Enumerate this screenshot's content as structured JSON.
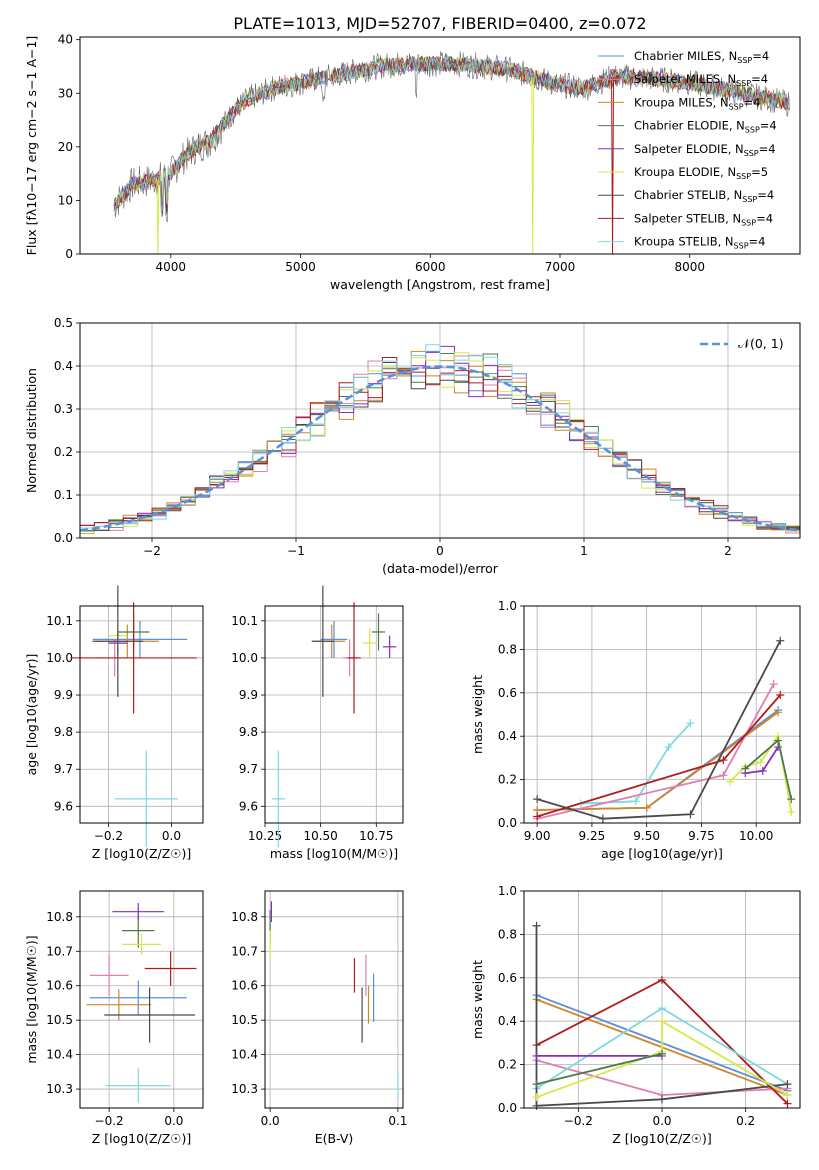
{
  "figure": {
    "title": "PLATE=1013, MJD=52707, FIBERID=0400, z=0.072"
  },
  "colors": {
    "Chabrier MILES": "#5b8fd6",
    "Salpeter MILES": "#e07fb1",
    "Kroupa MILES": "#d0862a",
    "Chabrier ELODIE": "#4a7a4a",
    "Salpeter ELODIE": "#8a2bc2",
    "Kroupa ELODIE": "#d6e84a",
    "Chabrier STELIB": "#4a4a4a",
    "Salpeter STELIB": "#b01c1c",
    "Kroupa STELIB": "#7fd8e0"
  },
  "chart_data": [
    {
      "id": "spectrum",
      "type": "line",
      "title": "PLATE=1013, MJD=52707, FIBERID=0400, z=0.072",
      "xlabel": "wavelength [Angstrom, rest frame]",
      "ylabel": "Flux [fλ10−17 erg cm−2 s−1 A−1]",
      "xlim": [
        3300,
        8850
      ],
      "ylim": [
        0,
        40.5
      ],
      "xticks": [
        "4000",
        "5000",
        "6000",
        "7000",
        "8000"
      ],
      "yticks": [
        "0",
        "10",
        "20",
        "30",
        "40"
      ],
      "legend_position": "upper right",
      "legend": [
        "Chabrier MILES, NSSP=4",
        "Salpeter MILES, NSSP=4",
        "Kroupa MILES, NSSP=4",
        "Chabrier ELODIE, NSSP=4",
        "Salpeter ELODIE, NSSP=4",
        "Kroupa ELODIE, NSSP=5",
        "Chabrier STELIB, NSSP=4",
        "Salpeter STELIB, NSSP=4",
        "Kroupa STELIB, NSSP=4"
      ],
      "continuum": [
        [
          3560,
          9
        ],
        [
          3700,
          13
        ],
        [
          3900,
          14
        ],
        [
          4000,
          15
        ],
        [
          4100,
          18
        ],
        [
          4200,
          20
        ],
        [
          4300,
          21
        ],
        [
          4400,
          24
        ],
        [
          4500,
          27
        ],
        [
          4600,
          29
        ],
        [
          4800,
          31
        ],
        [
          5000,
          32
        ],
        [
          5200,
          33
        ],
        [
          5400,
          34
        ],
        [
          5600,
          35
        ],
        [
          5800,
          35.5
        ],
        [
          6000,
          35.5
        ],
        [
          6200,
          35.5
        ],
        [
          6400,
          35
        ],
        [
          6600,
          34.5
        ],
        [
          6800,
          33
        ],
        [
          7000,
          31.5
        ],
        [
          7200,
          31
        ],
        [
          7400,
          33
        ],
        [
          7600,
          33
        ],
        [
          7800,
          32.5
        ],
        [
          8000,
          32
        ],
        [
          8200,
          31
        ],
        [
          8400,
          30
        ],
        [
          8600,
          29
        ],
        [
          8770,
          28
        ]
      ],
      "dips": [
        [
          3900,
          0
        ],
        [
          6790,
          0
        ],
        [
          7405,
          0
        ]
      ],
      "grid": false
    },
    {
      "id": "residuals",
      "type": "histogram",
      "xlabel": "(data-model)/error",
      "ylabel": "Normed distribution",
      "xlim": [
        -2.5,
        2.5
      ],
      "ylim": [
        0,
        0.5
      ],
      "xticks": [
        "−2",
        "−1",
        "0",
        "1",
        "2"
      ],
      "yticks": [
        "0.0",
        "0.1",
        "0.2",
        "0.3",
        "0.4",
        "0.5"
      ],
      "bin_width": 0.1,
      "legend_position": "upper right",
      "legend": [
        "𝒩(0, 1)"
      ],
      "reference_curve": "normal(0,1)",
      "reference_color": "#5b8fd6",
      "grid": true
    },
    {
      "id": "age_vs_z",
      "type": "errorbar",
      "xlabel": "Z [log10(Z/Z☉)]",
      "ylabel": "age  [log10(age/yr)]",
      "xlim": [
        -0.29,
        0.1
      ],
      "ylim": [
        9.555,
        10.14
      ],
      "xticks": [
        "−0.2",
        "0.0"
      ],
      "yticks": [
        "9.6",
        "9.7",
        "9.8",
        "9.9",
        "10.0",
        "10.1"
      ],
      "points": [
        {
          "series": "Chabrier MILES",
          "x": -0.1,
          "y": 10.05,
          "xerr": 0.15,
          "yerr": 0.05
        },
        {
          "series": "Salpeter MILES",
          "x": -0.18,
          "y": 10.0,
          "xerr": 0.06,
          "yerr": 0.05
        },
        {
          "series": "Kroupa MILES",
          "x": -0.14,
          "y": 10.045,
          "xerr": 0.1,
          "yerr": 0.045
        },
        {
          "series": "Chabrier ELODIE",
          "x": -0.12,
          "y": 10.07,
          "xerr": 0.05,
          "yerr": 0.05
        },
        {
          "series": "Salpeter ELODIE",
          "x": -0.17,
          "y": 10.04,
          "xerr": 0.03,
          "yerr": 0.03
        },
        {
          "series": "Kroupa ELODIE",
          "x": -0.17,
          "y": 10.06,
          "xerr": 0.03,
          "yerr": 0.03
        },
        {
          "series": "Chabrier STELIB",
          "x": -0.17,
          "y": 10.045,
          "xerr": 0.08,
          "yerr": 0.15
        },
        {
          "series": "Salpeter STELIB",
          "x": -0.12,
          "y": 10.0,
          "xerr": 0.2,
          "yerr": 0.15
        },
        {
          "series": "Kroupa STELIB",
          "x": -0.08,
          "y": 9.62,
          "xerr": 0.1,
          "yerr": 0.13
        }
      ],
      "grid": true
    },
    {
      "id": "age_vs_mass",
      "type": "errorbar",
      "xlabel": "mass [log10(M/M☉)]",
      "ylabel": "",
      "xlim": [
        10.25,
        10.87
      ],
      "ylim": [
        9.555,
        10.14
      ],
      "xticks": [
        "10.25",
        "10.50",
        "10.75"
      ],
      "yticks": [
        "9.6",
        "9.7",
        "9.8",
        "9.9",
        "10.0",
        "10.1"
      ],
      "points": [
        {
          "series": "Chabrier MILES",
          "x": 10.56,
          "y": 10.05,
          "xerr": 0.06,
          "yerr": 0.05
        },
        {
          "series": "Salpeter MILES",
          "x": 10.63,
          "y": 10.0,
          "xerr": 0.03,
          "yerr": 0.05
        },
        {
          "series": "Kroupa MILES",
          "x": 10.55,
          "y": 10.045,
          "xerr": 0.06,
          "yerr": 0.045
        },
        {
          "series": "Chabrier ELODIE",
          "x": 10.76,
          "y": 10.07,
          "xerr": 0.03,
          "yerr": 0.05
        },
        {
          "series": "Salpeter ELODIE",
          "x": 10.81,
          "y": 10.03,
          "xerr": 0.03,
          "yerr": 0.03
        },
        {
          "series": "Kroupa ELODIE",
          "x": 10.72,
          "y": 10.04,
          "xerr": 0.03,
          "yerr": 0.04
        },
        {
          "series": "Chabrier STELIB",
          "x": 10.51,
          "y": 10.045,
          "xerr": 0.05,
          "yerr": 0.15
        },
        {
          "series": "Salpeter STELIB",
          "x": 10.65,
          "y": 10.0,
          "xerr": 0.03,
          "yerr": 0.15
        },
        {
          "series": "Kroupa STELIB",
          "x": 10.31,
          "y": 9.62,
          "xerr": 0.03,
          "yerr": 0.13
        }
      ],
      "grid": true
    },
    {
      "id": "weight_vs_age",
      "type": "line",
      "xlabel": "age  [log10(age/yr)]",
      "ylabel": "mass weight",
      "xlim": [
        8.94,
        10.2
      ],
      "ylim": [
        0,
        1.0
      ],
      "xticks": [
        "9.00",
        "9.25",
        "9.50",
        "9.75",
        "10.00"
      ],
      "yticks": [
        "0.0",
        "0.2",
        "0.4",
        "0.6",
        "0.8",
        "1.0"
      ],
      "series": [
        {
          "series": "Kroupa STELIB",
          "x": [
            9.2,
            9.45,
            9.6,
            9.7
          ],
          "y": [
            0.09,
            0.1,
            0.35,
            0.46
          ]
        },
        {
          "series": "Chabrier MILES",
          "x": [
            9.0,
            9.5,
            10.1
          ],
          "y": [
            0.06,
            0.07,
            0.52
          ]
        },
        {
          "series": "Kroupa MILES",
          "x": [
            9.0,
            9.5,
            10.1
          ],
          "y": [
            0.06,
            0.07,
            0.51
          ]
        },
        {
          "series": "Salpeter MILES",
          "x": [
            9.0,
            9.85,
            10.08
          ],
          "y": [
            0.02,
            0.22,
            0.64
          ]
        },
        {
          "series": "Salpeter STELIB",
          "x": [
            9.0,
            9.85,
            10.11
          ],
          "y": [
            0.03,
            0.29,
            0.59
          ]
        },
        {
          "series": "Chabrier STELIB",
          "x": [
            9.0,
            9.3,
            9.7,
            10.11
          ],
          "y": [
            0.11,
            0.02,
            0.04,
            0.84
          ]
        },
        {
          "series": "Salpeter ELODIE",
          "x": [
            9.95,
            10.03,
            10.1
          ],
          "y": [
            0.23,
            0.24,
            0.35
          ]
        },
        {
          "series": "Kroupa ELODIE",
          "x": [
            9.88,
            9.95,
            10.02,
            10.1,
            10.16
          ],
          "y": [
            0.19,
            0.26,
            0.28,
            0.4,
            0.05
          ]
        },
        {
          "series": "Chabrier ELODIE",
          "x": [
            9.95,
            10.1,
            10.16
          ],
          "y": [
            0.25,
            0.38,
            0.11
          ]
        }
      ],
      "grid": true
    },
    {
      "id": "mass_vs_z",
      "type": "errorbar",
      "xlabel": "Z [log10(Z/Z☉)]",
      "ylabel": "mass [log10(M/M☉)]",
      "xlim": [
        -0.29,
        0.09
      ],
      "ylim": [
        10.245,
        10.875
      ],
      "xticks": [
        "−0.2",
        "0.0"
      ],
      "yticks": [
        "10.3",
        "10.4",
        "10.5",
        "10.6",
        "10.7",
        "10.8"
      ],
      "points": [
        {
          "series": "Chabrier MILES",
          "x": -0.11,
          "y": 10.565,
          "xerr": 0.15,
          "yerr": 0.05
        },
        {
          "series": "Salpeter MILES",
          "x": -0.2,
          "y": 10.63,
          "xerr": 0.06,
          "yerr": 0.06
        },
        {
          "series": "Kroupa MILES",
          "x": -0.17,
          "y": 10.545,
          "xerr": 0.1,
          "yerr": 0.045
        },
        {
          "series": "Chabrier ELODIE",
          "x": -0.11,
          "y": 10.76,
          "xerr": 0.05,
          "yerr": 0.05
        },
        {
          "series": "Salpeter ELODIE",
          "x": -0.11,
          "y": 10.815,
          "xerr": 0.08,
          "yerr": 0.025
        },
        {
          "series": "Kroupa ELODIE",
          "x": -0.1,
          "y": 10.72,
          "xerr": 0.06,
          "yerr": 0.03
        },
        {
          "series": "Chabrier STELIB",
          "x": -0.075,
          "y": 10.515,
          "xerr": 0.14,
          "yerr": 0.08
        },
        {
          "series": "Salpeter STELIB",
          "x": -0.01,
          "y": 10.65,
          "xerr": 0.08,
          "yerr": 0.05
        },
        {
          "series": "Kroupa STELIB",
          "x": -0.11,
          "y": 10.31,
          "xerr": 0.1,
          "yerr": 0.05
        }
      ],
      "grid": true
    },
    {
      "id": "mass_vs_ebv",
      "type": "errorbar",
      "xlabel": "E(B-V)",
      "ylabel": "",
      "xlim": [
        -0.004,
        0.104
      ],
      "ylim": [
        10.245,
        10.875
      ],
      "xticks": [
        "0.0",
        "0.1"
      ],
      "yticks": [
        "10.3",
        "10.4",
        "10.5",
        "10.6",
        "10.7",
        "10.8"
      ],
      "points": [
        {
          "series": "Chabrier MILES",
          "x": 0.081,
          "y": 10.565,
          "xerr": 0,
          "yerr": 0.07
        },
        {
          "series": "Salpeter MILES",
          "x": 0.075,
          "y": 10.63,
          "xerr": 0,
          "yerr": 0.06
        },
        {
          "series": "Kroupa MILES",
          "x": 0.077,
          "y": 10.545,
          "xerr": 0,
          "yerr": 0.055
        },
        {
          "series": "Chabrier ELODIE",
          "x": 0.0,
          "y": 10.77,
          "xerr": 0,
          "yerr": 0.05
        },
        {
          "series": "Salpeter ELODIE",
          "x": 0.001,
          "y": 10.815,
          "xerr": 0,
          "yerr": 0.03
        },
        {
          "series": "Kroupa ELODIE",
          "x": 0.0,
          "y": 10.72,
          "xerr": 0,
          "yerr": 0.04
        },
        {
          "series": "Chabrier STELIB",
          "x": 0.072,
          "y": 10.515,
          "xerr": 0,
          "yerr": 0.08
        },
        {
          "series": "Salpeter STELIB",
          "x": 0.066,
          "y": 10.63,
          "xerr": 0,
          "yerr": 0.05
        },
        {
          "series": "Kroupa STELIB",
          "x": 0.1,
          "y": 10.31,
          "xerr": 0,
          "yerr": 0.04
        }
      ],
      "grid": true
    },
    {
      "id": "weight_vs_z",
      "type": "line",
      "xlabel": "Z [log10(Z/Z☉)]",
      "ylabel": "mass weight",
      "xlim": [
        -0.33,
        0.33
      ],
      "ylim": [
        0,
        1.0
      ],
      "xticks": [
        "−0.2",
        "0.0",
        "0.2"
      ],
      "yticks": [
        "0.0",
        "0.2",
        "0.4",
        "0.6",
        "0.8",
        "1.0"
      ],
      "series": [
        {
          "series": "Chabrier MILES",
          "x": [
            -0.3,
            0.3
          ],
          "y": [
            0.52,
            0.08
          ]
        },
        {
          "series": "Kroupa MILES",
          "x": [
            -0.3,
            0.3
          ],
          "y": [
            0.5,
            0.06
          ]
        },
        {
          "series": "Salpeter MILES",
          "x": [
            -0.3,
            0.0,
            0.3
          ],
          "y": [
            0.22,
            0.06,
            0.09
          ]
        },
        {
          "series": "Salpeter STELIB",
          "x": [
            -0.3,
            0.0,
            0.3
          ],
          "y": [
            0.29,
            0.59,
            0.02
          ]
        },
        {
          "series": "Kroupa STELIB",
          "x": [
            -0.3,
            0.0,
            0.3
          ],
          "y": [
            0.09,
            0.46,
            0.11
          ]
        },
        {
          "series": "Chabrier STELIB",
          "x": [
            -0.3,
            -0.3,
            0.0,
            0.3
          ],
          "y": [
            0.84,
            0.01,
            0.04,
            0.11
          ]
        },
        {
          "series": "Salpeter ELODIE",
          "x": [
            -0.3,
            0.0
          ],
          "y": [
            0.24,
            0.24
          ]
        },
        {
          "series": "Kroupa ELODIE",
          "x": [
            -0.3,
            0.0,
            0.0,
            0.3
          ],
          "y": [
            0.05,
            0.26,
            0.4,
            0.06
          ]
        },
        {
          "series": "Chabrier ELODIE",
          "x": [
            -0.3,
            0.0
          ],
          "y": [
            0.11,
            0.25
          ]
        }
      ],
      "grid": true
    }
  ]
}
